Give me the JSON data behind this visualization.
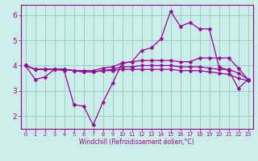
{
  "xlabel": "Windchill (Refroidissement éolien,°C)",
  "xlim": [
    -0.5,
    23.5
  ],
  "ylim": [
    1.5,
    6.4
  ],
  "bg_color": "#cceee8",
  "line_color": "#990099",
  "markersize": 2.5,
  "linewidth": 0.9,
  "xticks": [
    0,
    1,
    2,
    3,
    4,
    5,
    6,
    7,
    8,
    9,
    10,
    11,
    12,
    13,
    14,
    15,
    16,
    17,
    18,
    19,
    20,
    21,
    22,
    23
  ],
  "yticks": [
    2,
    3,
    4,
    5,
    6
  ],
  "grid_color": "#99cccc",
  "lines": [
    [
      4.0,
      3.45,
      3.55,
      3.85,
      3.8,
      2.45,
      2.4,
      1.65,
      2.55,
      3.3,
      4.1,
      4.15,
      4.6,
      4.7,
      5.05,
      6.15,
      5.55,
      5.7,
      5.45,
      5.45,
      3.95,
      3.8,
      3.1,
      3.45
    ],
    [
      4.0,
      3.85,
      3.85,
      3.85,
      3.85,
      3.8,
      3.8,
      3.8,
      3.9,
      3.95,
      4.1,
      4.15,
      4.2,
      4.2,
      4.2,
      4.2,
      4.15,
      4.15,
      4.3,
      4.3,
      4.3,
      4.3,
      3.9,
      3.45
    ],
    [
      4.0,
      3.85,
      3.85,
      3.85,
      3.85,
      3.8,
      3.75,
      3.75,
      3.8,
      3.85,
      3.95,
      3.95,
      4.0,
      4.0,
      4.0,
      4.0,
      3.95,
      3.95,
      3.95,
      3.9,
      3.85,
      3.85,
      3.7,
      3.45
    ],
    [
      4.0,
      3.85,
      3.85,
      3.85,
      3.85,
      3.8,
      3.75,
      3.75,
      3.8,
      3.8,
      3.85,
      3.85,
      3.85,
      3.85,
      3.85,
      3.85,
      3.8,
      3.8,
      3.8,
      3.75,
      3.7,
      3.65,
      3.5,
      3.4
    ]
  ]
}
